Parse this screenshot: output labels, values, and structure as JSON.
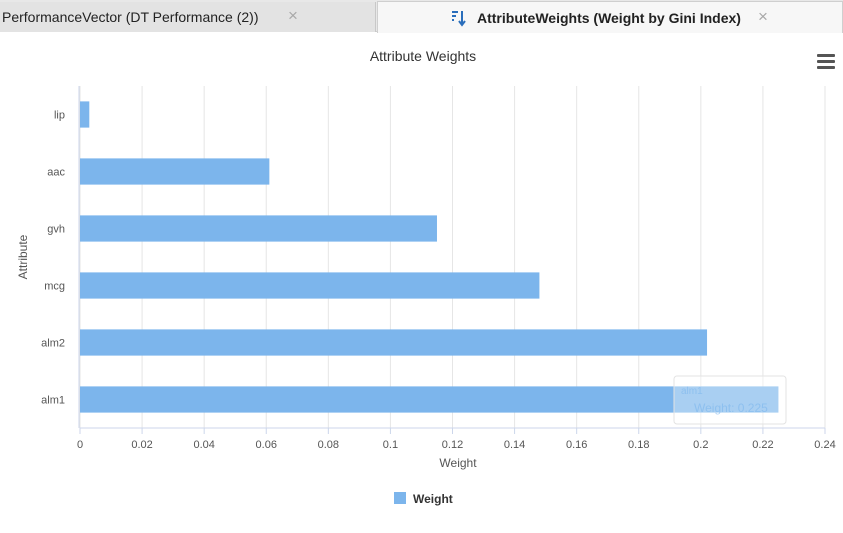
{
  "tabs": [
    {
      "label": "PerformanceVector (DT Performance (2))",
      "active": false
    },
    {
      "label": "AttributeWeights (Weight by Gini Index)",
      "active": true
    }
  ],
  "close_glyph": "×",
  "icons": {
    "sort": "sort-descending-icon",
    "menu": "hamburger-menu-icon"
  },
  "colors": {
    "bar": "#7cb5ec",
    "grid": "#e6e6e6",
    "tooltip_text": "#7cb5ec"
  },
  "tooltip": {
    "title": "alm1",
    "text": "Weight: 0.225"
  },
  "chart_data": {
    "type": "bar",
    "orientation": "horizontal",
    "title": "Attribute Weights",
    "xlabel": "Weight",
    "ylabel": "Attribute",
    "categories": [
      "lip",
      "aac",
      "gvh",
      "mcg",
      "alm2",
      "alm1"
    ],
    "series": [
      {
        "name": "Weight",
        "values": [
          0.003,
          0.061,
          0.115,
          0.148,
          0.202,
          0.225
        ]
      }
    ],
    "xlim": [
      0,
      0.24
    ],
    "xticks": [
      "0",
      "0.02",
      "0.04",
      "0.06",
      "0.08",
      "0.1",
      "0.12",
      "0.14",
      "0.16",
      "0.18",
      "0.2",
      "0.22",
      "0.24"
    ],
    "grid": true,
    "legend": "bottom-center"
  }
}
